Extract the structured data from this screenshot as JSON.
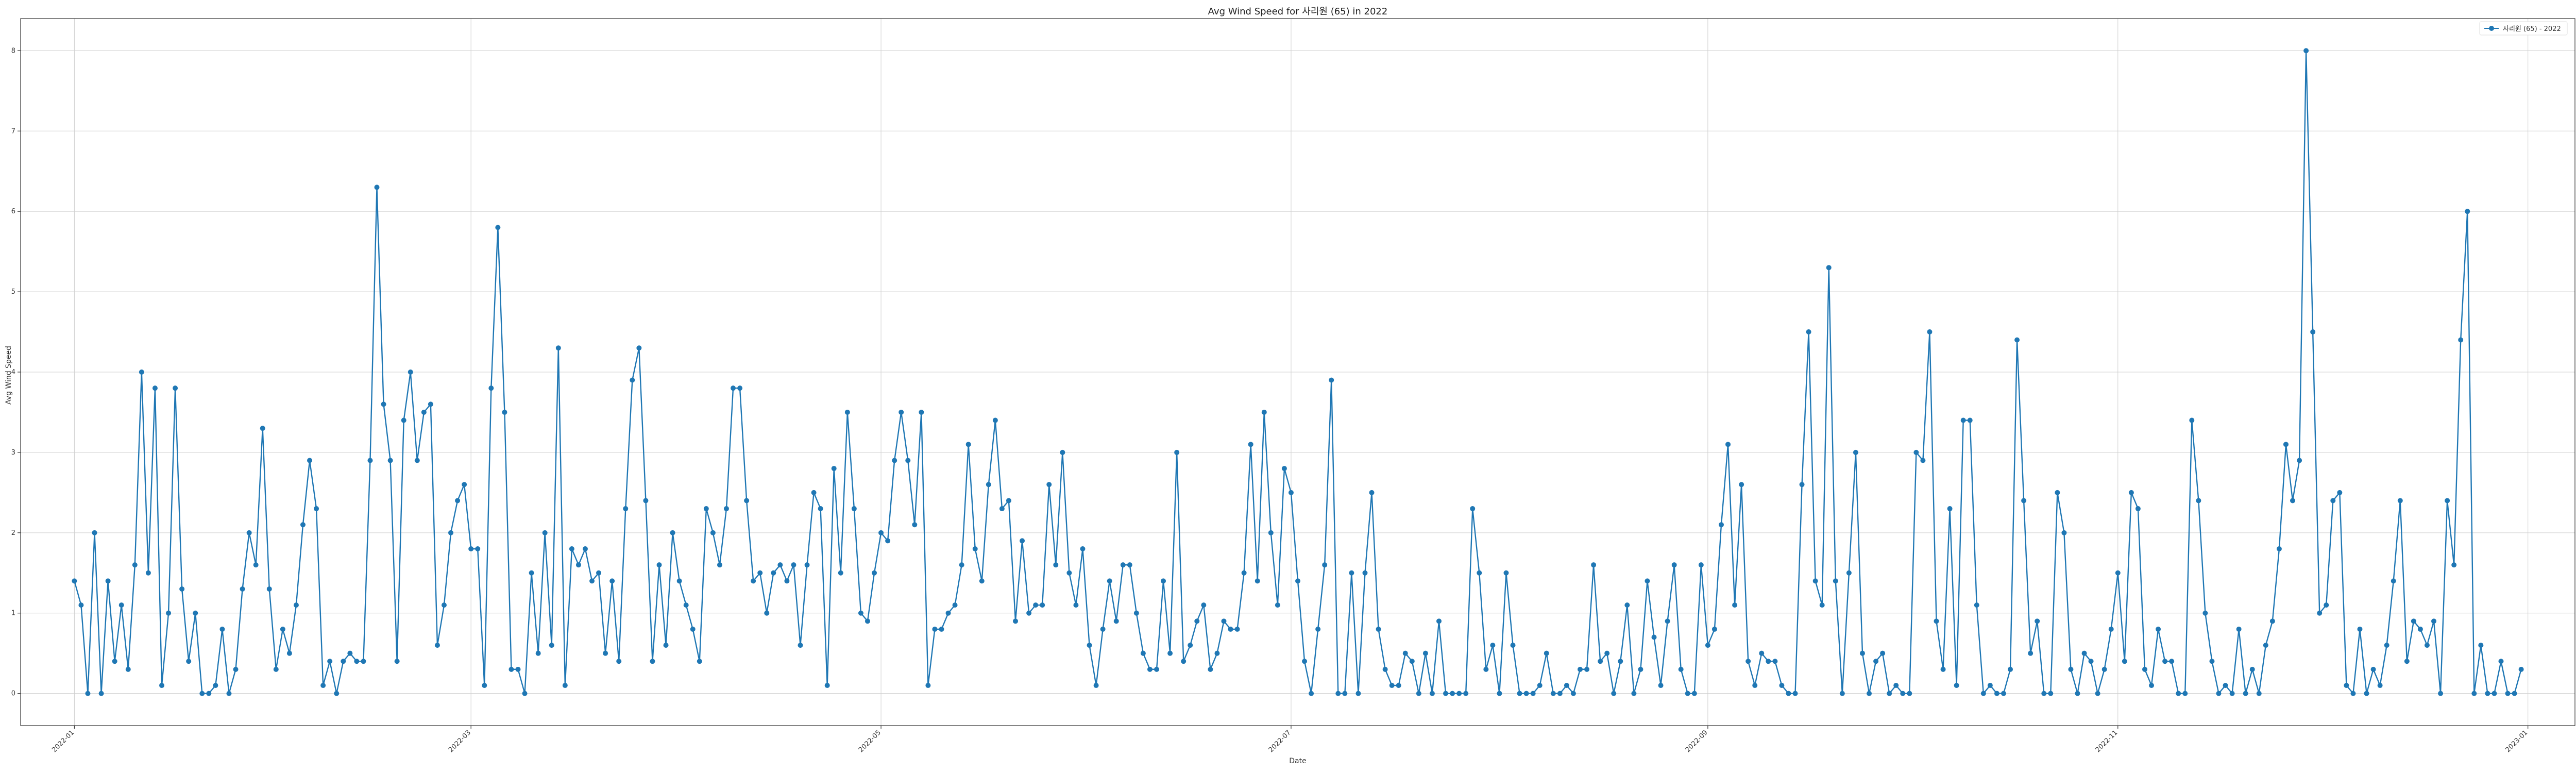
{
  "chart_data": {
    "type": "line",
    "title": "Avg Wind Speed for 사리원 (65) in 2022",
    "xlabel": "Date",
    "ylabel": "Avg Wind Speed",
    "x_range": [
      "2021-12-24",
      "2023-01-08"
    ],
    "ylim": [
      -0.4,
      8.4
    ],
    "y_ticks": [
      0,
      1,
      2,
      3,
      4,
      5,
      6,
      7,
      8
    ],
    "x_ticks": [
      "2022-01",
      "2022-03",
      "2022-05",
      "2022-07",
      "2022-09",
      "2022-11",
      "2023-01"
    ],
    "x_tick_dates": [
      "2022-01-01",
      "2022-03-01",
      "2022-05-01",
      "2022-07-01",
      "2022-09-01",
      "2022-11-01",
      "2023-01-01"
    ],
    "grid": true,
    "legend_position": "top-right",
    "start_date": "2022-01-01",
    "series": [
      {
        "name": "사리원 (65) - 2022",
        "color": "#1f77b4",
        "marker": "circle",
        "values": [
          1.4,
          1.1,
          0,
          2.0,
          0,
          1.4,
          0.4,
          1.1,
          0.3,
          1.6,
          4.0,
          1.5,
          3.8,
          0.1,
          1.0,
          3.8,
          1.3,
          0.4,
          1.0,
          0,
          0,
          0.1,
          0.8,
          0,
          0.3,
          1.3,
          2.0,
          1.6,
          3.3,
          1.3,
          0.3,
          0.8,
          0.5,
          1.1,
          2.1,
          2.9,
          2.3,
          0.1,
          0.4,
          0,
          0.4,
          0.5,
          0.4,
          0.4,
          2.9,
          6.3,
          3.6,
          2.9,
          0.4,
          3.4,
          4.0,
          2.9,
          3.5,
          3.6,
          0.6,
          1.1,
          2.0,
          2.4,
          2.6,
          1.8,
          1.8,
          0.1,
          3.8,
          5.8,
          3.5,
          0.3,
          0.3,
          0,
          1.5,
          0.5,
          2.0,
          0.6,
          4.3,
          0.1,
          1.8,
          1.6,
          1.8,
          1.4,
          1.5,
          0.5,
          1.4,
          0.4,
          2.3,
          3.9,
          4.3,
          2.4,
          0.4,
          1.6,
          0.6,
          2.0,
          1.4,
          1.1,
          0.8,
          0.4,
          2.3,
          2.0,
          1.6,
          2.3,
          3.8,
          3.8,
          2.4,
          1.4,
          1.5,
          1.0,
          1.5,
          1.6,
          1.4,
          1.6,
          0.6,
          1.6,
          2.5,
          2.3,
          0.1,
          2.8,
          1.5,
          3.5,
          2.3,
          1.0,
          0.9,
          1.5,
          2.0,
          1.9,
          2.9,
          3.5,
          2.9,
          2.1,
          3.5,
          0.1,
          0.8,
          0.8,
          1.0,
          1.1,
          1.6,
          3.1,
          1.8,
          1.4,
          2.6,
          3.4,
          2.3,
          2.4,
          0.9,
          1.9,
          1.0,
          1.1,
          1.1,
          2.6,
          1.6,
          3.0,
          1.5,
          1.1,
          1.8,
          0.6,
          0.1,
          0.8,
          1.4,
          0.9,
          1.6,
          1.6,
          1.0,
          0.5,
          0.3,
          0.3,
          1.4,
          0.5,
          3.0,
          0.4,
          0.6,
          0.9,
          1.1,
          0.3,
          0.5,
          0.9,
          0.8,
          0.8,
          1.5,
          3.1,
          1.4,
          3.5,
          2.0,
          1.1,
          2.8,
          2.5,
          1.4,
          0.4,
          0,
          0.8,
          1.6,
          3.9,
          0,
          0,
          1.5,
          0,
          1.5,
          2.5,
          0.8,
          0.3,
          0.1,
          0.1,
          0.5,
          0.4,
          0,
          0.5,
          0,
          0.9,
          0,
          0,
          0,
          0,
          2.3,
          1.5,
          0.3,
          0.6,
          0,
          1.5,
          0.6,
          0,
          0,
          0,
          0.1,
          0.5,
          0,
          0,
          0.1,
          0,
          0.3,
          0.3,
          1.6,
          0.4,
          0.5,
          0,
          0.4,
          1.1,
          0,
          0.3,
          1.4,
          0.7,
          0.1,
          0.9,
          1.6,
          0.3,
          0,
          0,
          1.6,
          0.6,
          0.8,
          2.1,
          3.1,
          1.1,
          2.6,
          0.4,
          0.1,
          0.5,
          0.4,
          0.4,
          0.1,
          0,
          0,
          2.6,
          4.5,
          1.4,
          1.1,
          5.3,
          1.4,
          0,
          1.5,
          3.0,
          0.5,
          0,
          0.4,
          0.5,
          0,
          0.1,
          0,
          0,
          3.0,
          2.9,
          4.5,
          0.9,
          0.3,
          2.3,
          0.1,
          3.4,
          3.4,
          1.1,
          0,
          0.1,
          0,
          0,
          0.3,
          4.4,
          2.4,
          0.5,
          0.9,
          0,
          0,
          2.5,
          2.0,
          0.3,
          0,
          0.5,
          0.4,
          0,
          0.3,
          0.8,
          1.5,
          0.4,
          2.5,
          2.3,
          0.3,
          0.1,
          0.8,
          0.4,
          0.4,
          0,
          0,
          3.4,
          2.4,
          1.0,
          0.4,
          0,
          0.1,
          0,
          0.8,
          0,
          0.3,
          0,
          0.6,
          0.9,
          1.8,
          3.1,
          2.4,
          2.9,
          8.0,
          4.5,
          1.0,
          1.1,
          2.4,
          2.5,
          0.1,
          0,
          0.8,
          0,
          0.3,
          0.1,
          0.6,
          1.4,
          2.4,
          0.4,
          0.9,
          0.8,
          0.6,
          0.9,
          0,
          2.4,
          1.6,
          4.4,
          6.0,
          0,
          0.6,
          0,
          0,
          0.4,
          0,
          0,
          0.3
        ]
      }
    ]
  }
}
